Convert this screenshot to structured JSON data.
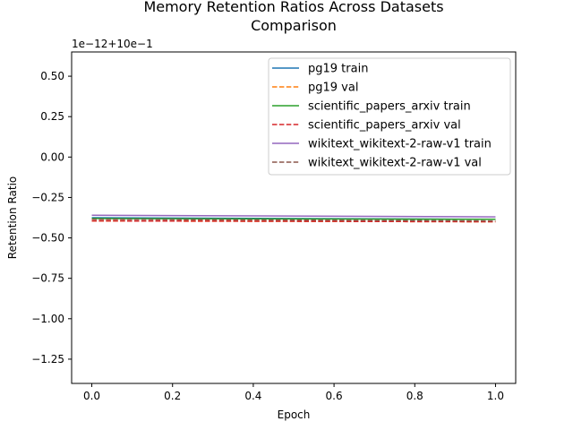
{
  "chart_data": {
    "type": "line",
    "title_line1": "Memory Retention Ratios Across Datasets",
    "title_line2": "Comparison",
    "xlabel": "Epoch",
    "ylabel": "Retention Ratio",
    "offset_label": "1e−12+10e−1",
    "xlim": [
      -0.05,
      1.05
    ],
    "ylim": [
      -1.4,
      0.65
    ],
    "x_ticks": [
      0.0,
      0.2,
      0.4,
      0.6,
      0.8,
      1.0
    ],
    "x_tick_labels": [
      "0.0",
      "0.2",
      "0.4",
      "0.6",
      "0.8",
      "1.0"
    ],
    "y_ticks": [
      0.5,
      0.25,
      0.0,
      -0.25,
      -0.5,
      -0.75,
      -1.0,
      -1.25
    ],
    "y_tick_labels": [
      "0.50",
      "0.25",
      "0.00",
      "−0.25",
      "−0.50",
      "−0.75",
      "−1.00",
      "−1.25"
    ],
    "grid": false,
    "legend_position": "top-right",
    "series": [
      {
        "name": "pg19 train",
        "x": [
          0.0,
          1.0
        ],
        "y": [
          -0.375,
          -0.385
        ],
        "color": "#1f77b4",
        "dashed": false
      },
      {
        "name": "pg19 val",
        "x": [
          0.0,
          1.0
        ],
        "y": [
          -0.395,
          -0.4
        ],
        "color": "#ff7f0e",
        "dashed": true
      },
      {
        "name": "scientific_papers_arxiv train",
        "x": [
          0.0,
          1.0
        ],
        "y": [
          -0.38,
          -0.385
        ],
        "color": "#2ca02c",
        "dashed": false
      },
      {
        "name": "scientific_papers_arxiv val",
        "x": [
          0.0,
          1.0
        ],
        "y": [
          -0.395,
          -0.4
        ],
        "color": "#d62728",
        "dashed": true
      },
      {
        "name": "wikitext_wikitext-2-raw-v1 train",
        "x": [
          0.0,
          1.0
        ],
        "y": [
          -0.36,
          -0.37
        ],
        "color": "#9467bd",
        "dashed": false
      },
      {
        "name": "wikitext_wikitext-2-raw-v1 val",
        "x": [
          0.0,
          1.0
        ],
        "y": [
          -0.385,
          -0.395
        ],
        "color": "#8c564b",
        "dashed": true
      }
    ]
  }
}
